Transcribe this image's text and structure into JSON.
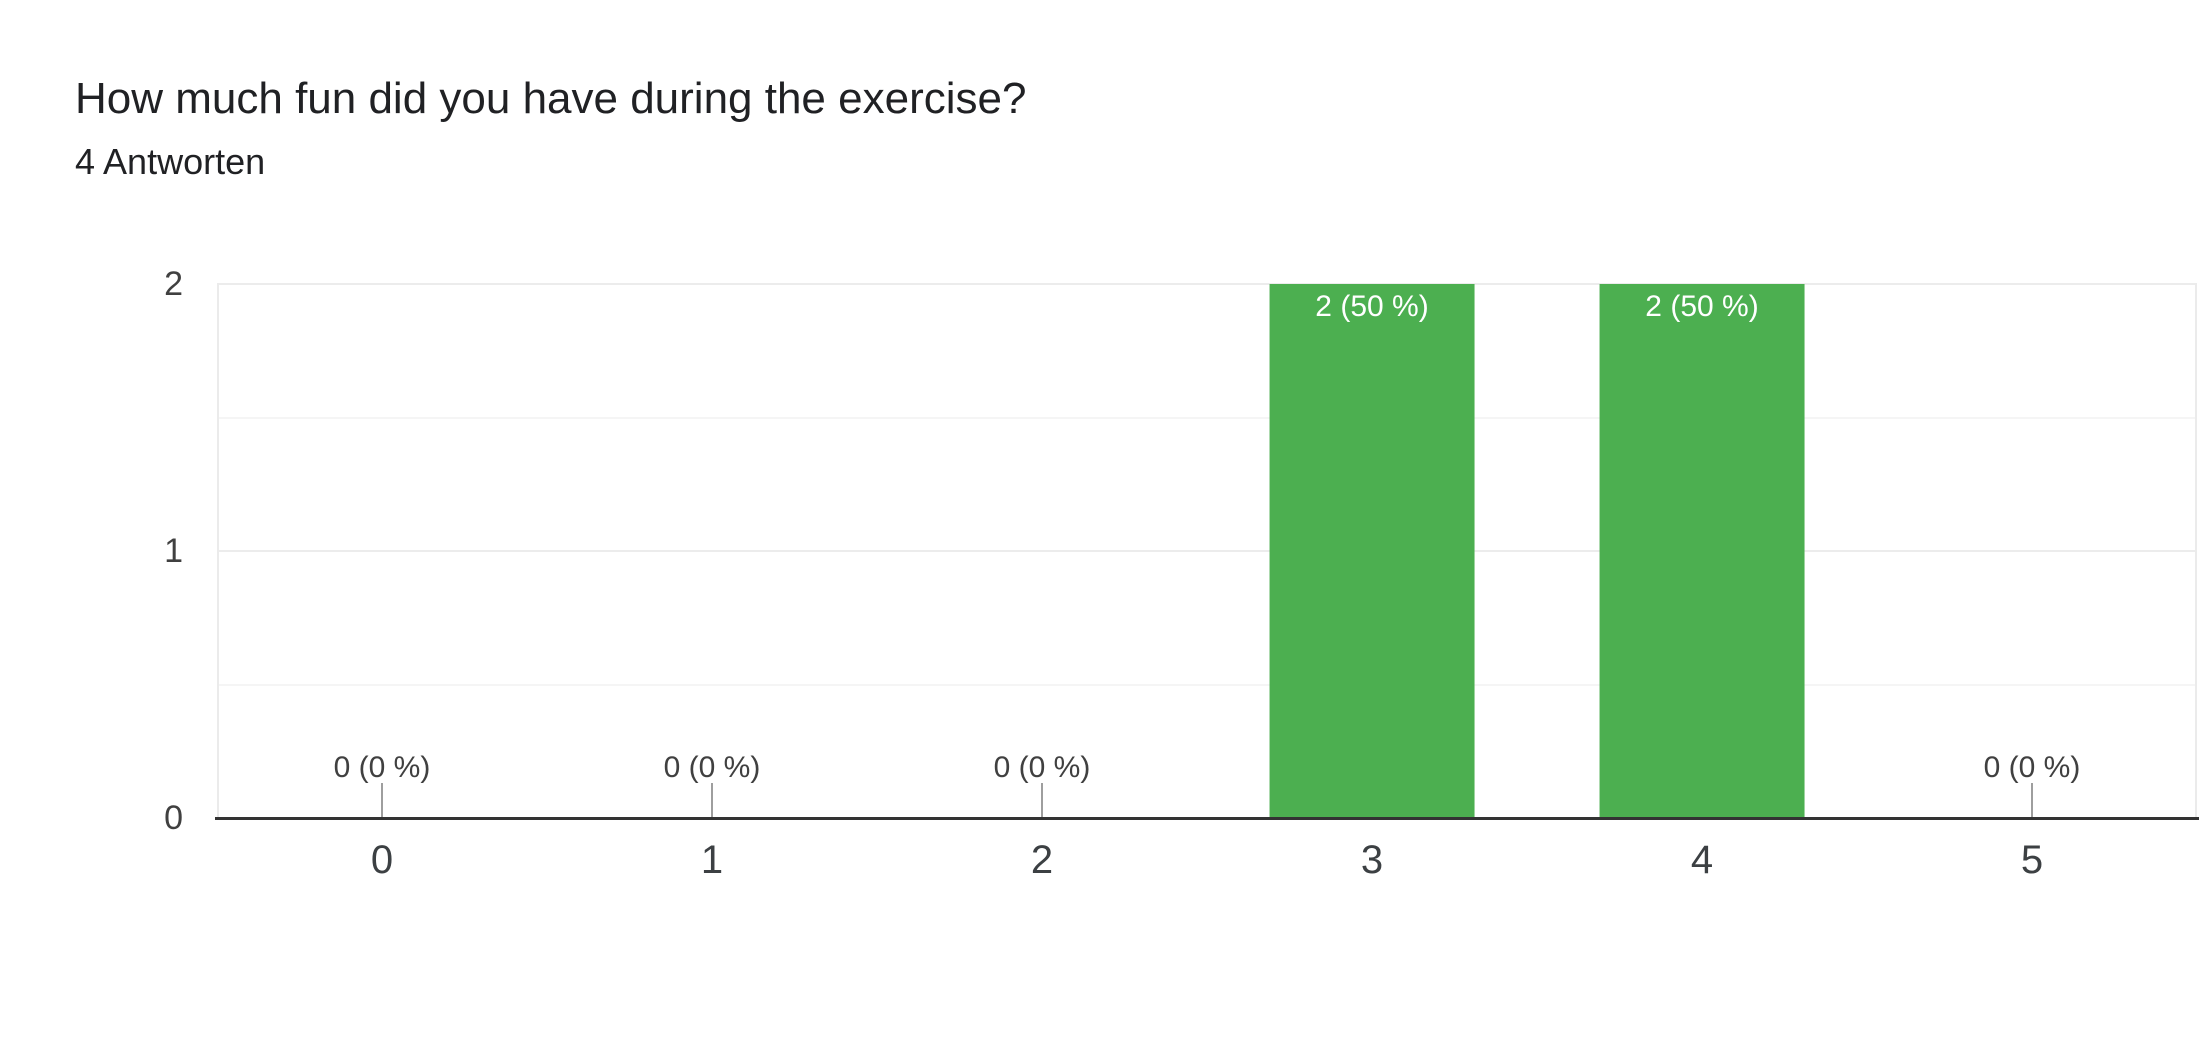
{
  "header": {
    "title": "How much fun did you have during the exercise?",
    "subtitle": "4 Antworten"
  },
  "chart_data": {
    "type": "bar",
    "title": "How much fun did you have during the exercise?",
    "subtitle": "4 Antworten",
    "categories": [
      "0",
      "1",
      "2",
      "3",
      "4",
      "5"
    ],
    "values": [
      0,
      0,
      0,
      2,
      2,
      0
    ],
    "bar_labels": [
      "0 (0 %)",
      "0 (0 %)",
      "0 (0 %)",
      "2 (50 %)",
      "2 (50 %)",
      "0 (0 %)"
    ],
    "xlabel": "",
    "ylabel": "",
    "ylim": [
      0,
      2
    ],
    "y_ticks": [
      {
        "value": 0,
        "label": "0"
      },
      {
        "value": 1,
        "label": "1"
      },
      {
        "value": 2,
        "label": "2"
      }
    ],
    "grid": "on",
    "legend": "none",
    "colors": {
      "bar": "#4caf50",
      "bar_label_text": "#ffffff",
      "annotation_text": "#404040",
      "axis_text": "#3c4043",
      "baseline": "#333333",
      "gridline_major": "#ececec",
      "gridline_minor": "#f5f5f5",
      "tick": "#9e9e9e",
      "background": "#ffffff"
    }
  }
}
